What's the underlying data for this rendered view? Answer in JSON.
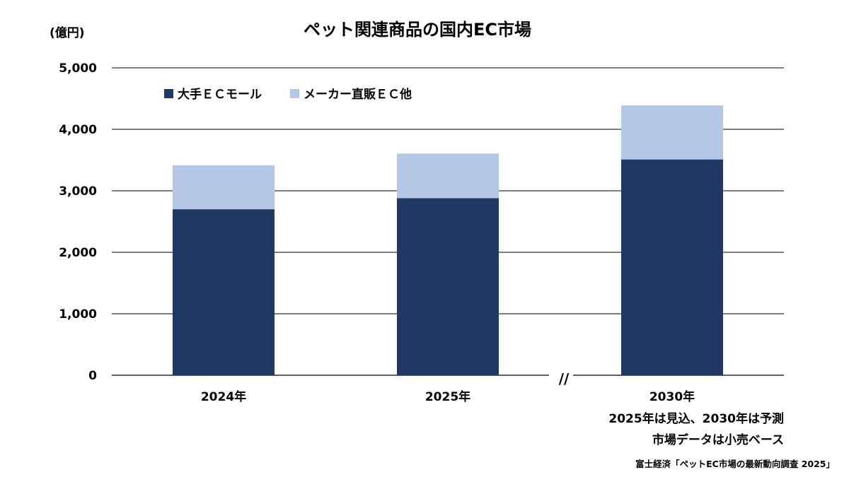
{
  "chart_data": {
    "type": "bar",
    "stacked": true,
    "title": "ペット関連商品の国内EC市場",
    "unit_label": "(億円)",
    "categories": [
      "2024年",
      "2025年",
      "2030年"
    ],
    "series": [
      {
        "name": "大手ＥＣモール",
        "values": [
          2700,
          2880,
          3510
        ],
        "color": "#203864"
      },
      {
        "name": "メーカー直販ＥＣ他",
        "values": [
          715,
          725,
          880
        ],
        "color": "#b4c7e7"
      }
    ],
    "ylim": [
      0,
      5000
    ],
    "yticks": [
      "0",
      "1,000",
      "2,000",
      "3,000",
      "4,000",
      "5,000"
    ],
    "grid": true,
    "legend_position": "top-left",
    "axis_break_symbol": "//",
    "notes": [
      "2025年は見込、2030年は予測",
      "市場データは小売ベース"
    ],
    "source": "富士経済「ペットEC市場の最新動向調査 2025」"
  }
}
